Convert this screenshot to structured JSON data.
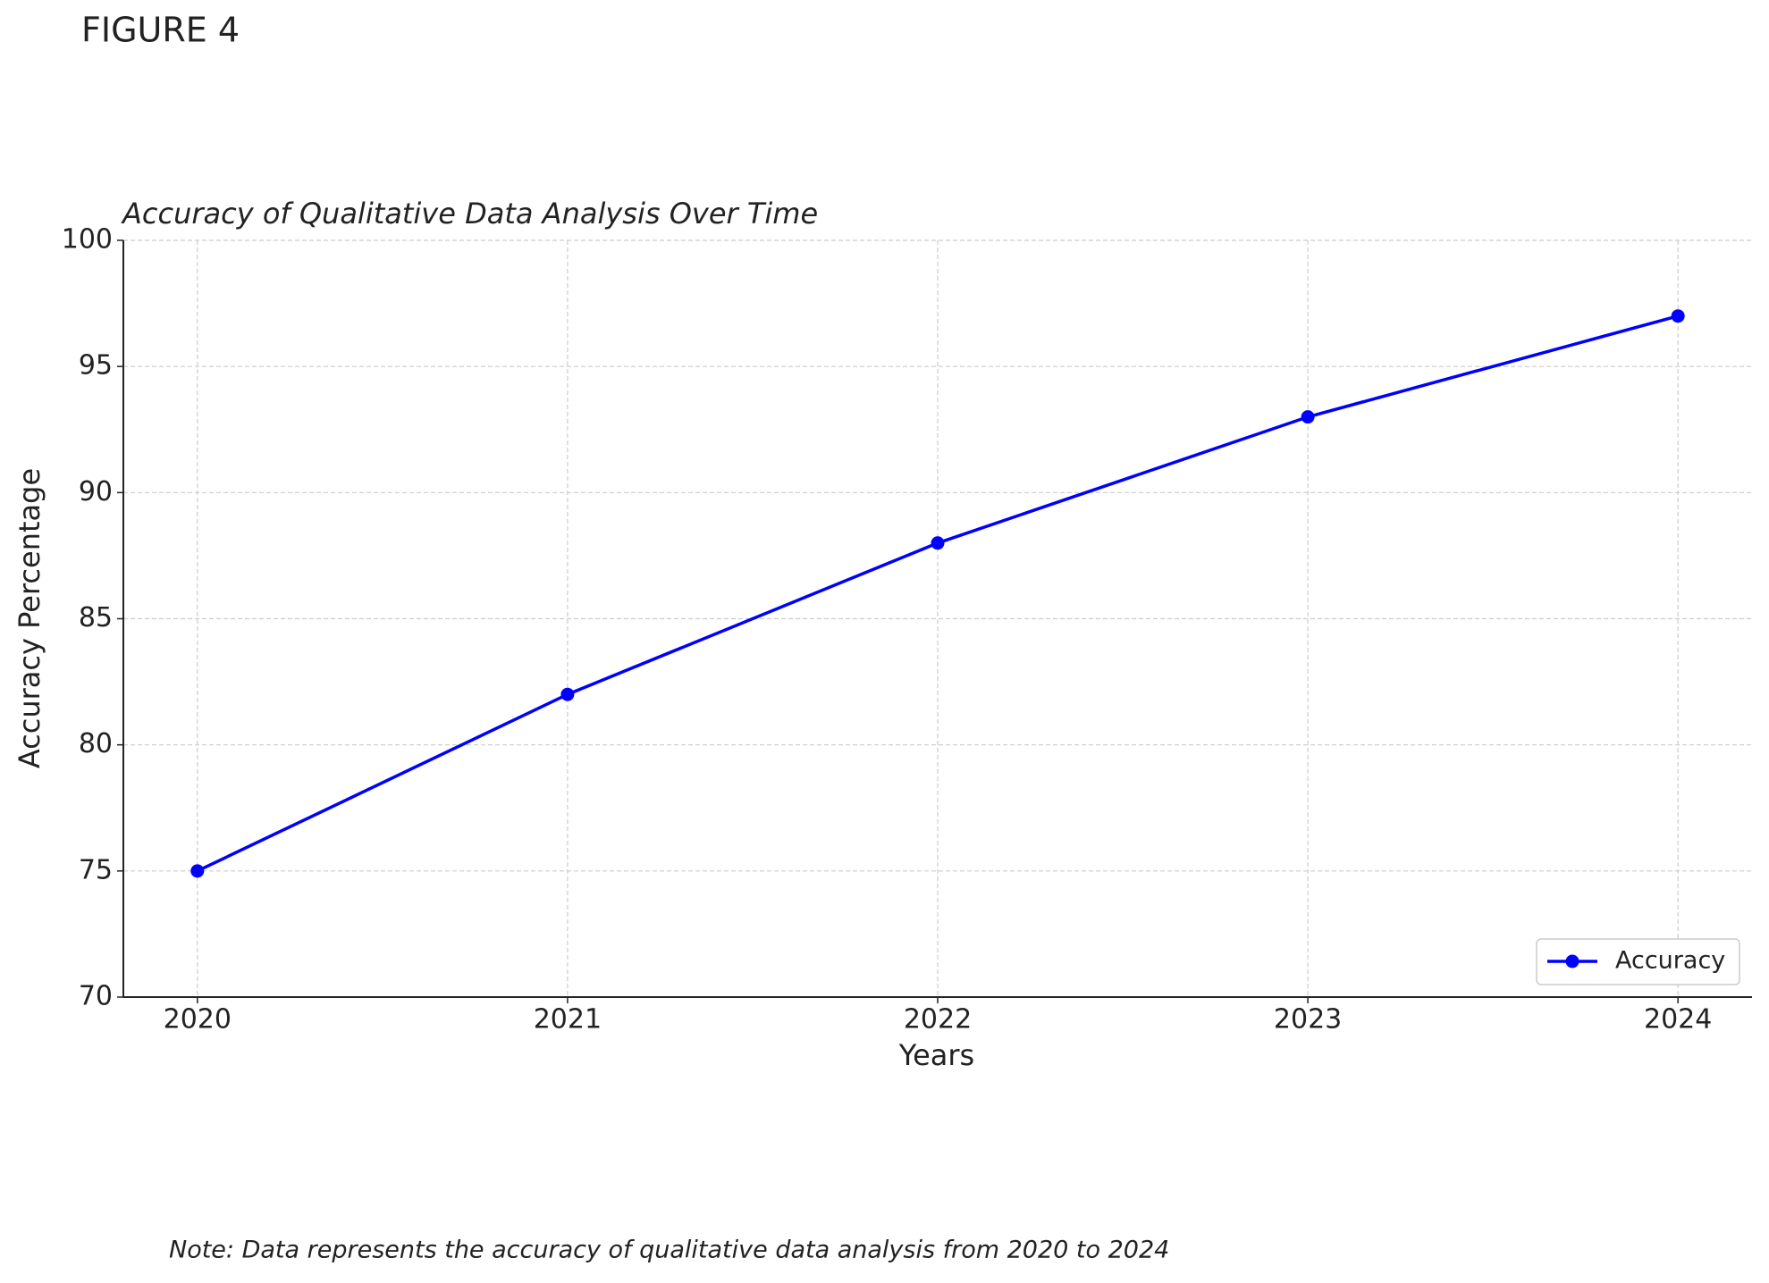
{
  "figure_label": "FIGURE 4",
  "note": "Note: Data represents the accuracy of qualitative data analysis from 2020 to 2024",
  "chart_data": {
    "type": "line",
    "title": "Accuracy of Qualitative Data Analysis Over Time",
    "xlabel": "Years",
    "ylabel": "Accuracy Percentage",
    "x": [
      2020,
      2021,
      2022,
      2023,
      2024
    ],
    "series": [
      {
        "name": "Accuracy",
        "color": "#0000ff",
        "values": [
          75,
          82,
          88,
          93,
          97
        ]
      }
    ],
    "xlim": [
      2019.8,
      2024.2
    ],
    "xticks": [
      2020,
      2021,
      2022,
      2023,
      2024
    ],
    "ylim": [
      70,
      100
    ],
    "yticks": [
      70,
      75,
      80,
      85,
      90,
      95,
      100
    ],
    "grid": true,
    "legend": "lower right"
  }
}
